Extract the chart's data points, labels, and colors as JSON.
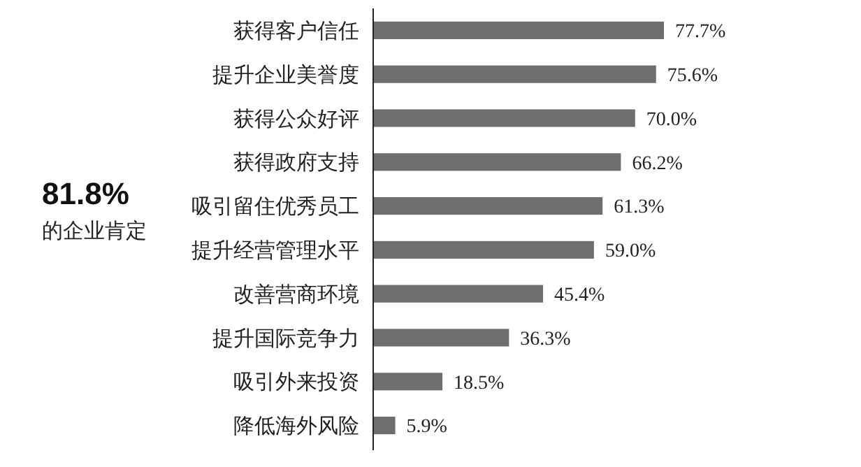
{
  "chart_data": {
    "type": "bar",
    "orientation": "horizontal",
    "categories": [
      "获得客户信任",
      "提升企业美誉度",
      "获得公众好评",
      "获得政府支持",
      "吸引留住优秀员工",
      "提升经营管理水平",
      "改善营商环境",
      "提升国际竞争力",
      "吸引外来投资",
      "降低海外风险"
    ],
    "values": [
      77.7,
      75.6,
      70.0,
      66.2,
      61.3,
      59.0,
      45.4,
      36.3,
      18.5,
      5.9
    ],
    "value_labels": [
      "77.7%",
      "75.6%",
      "70.0%",
      "66.2%",
      "61.3%",
      "59.0%",
      "45.4%",
      "36.3%",
      "18.5%",
      "5.9%"
    ],
    "color": "#6d6e70",
    "annotations": [
      "81.8%",
      "的企业肯定"
    ]
  }
}
